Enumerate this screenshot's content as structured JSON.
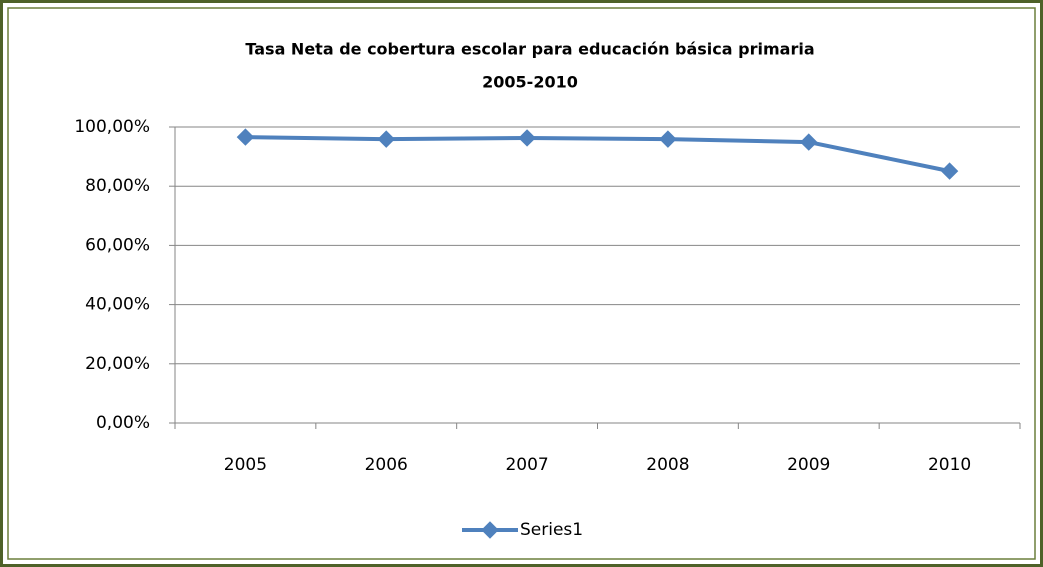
{
  "chart_data": {
    "type": "line",
    "title": [
      "Tasa  Neta de cobertura escolar para educación básica primaria",
      "2005-2010"
    ],
    "categories": [
      "2005",
      "2006",
      "2007",
      "2008",
      "2009",
      "2010"
    ],
    "series": [
      {
        "name": "Series1",
        "color": "#4f81bd",
        "values": [
          96.6,
          95.9,
          96.3,
          95.9,
          94.9,
          85.1
        ]
      }
    ],
    "ylim": [
      0,
      100
    ],
    "yticks": [
      {
        "value": 0,
        "label": "0,00%"
      },
      {
        "value": 20,
        "label": "20,00%"
      },
      {
        "value": 40,
        "label": "40,00%"
      },
      {
        "value": 60,
        "label": "60,00%"
      },
      {
        "value": 80,
        "label": "80,00%"
      },
      {
        "value": 100,
        "label": "100,00%"
      }
    ],
    "grid": true,
    "legend": "bottom"
  }
}
